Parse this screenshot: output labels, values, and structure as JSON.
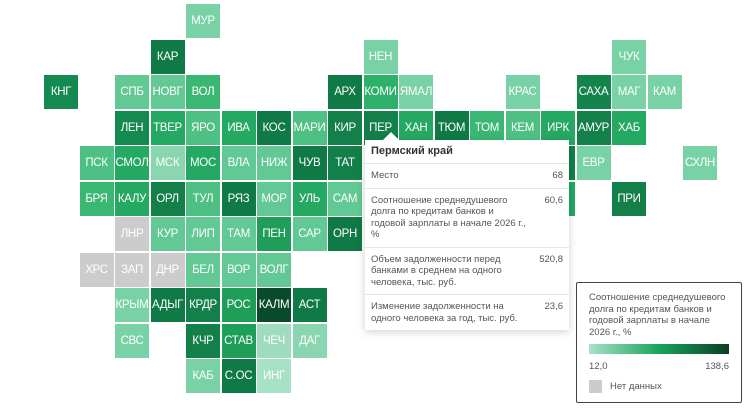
{
  "tiles": [
    {
      "label": "МУР",
      "row": 0,
      "col": 4,
      "color": "#79d1a6"
    },
    {
      "label": "КАР",
      "row": 1,
      "col": 3,
      "color": "#0f7a45"
    },
    {
      "label": "НЕН",
      "row": 1,
      "col": 9,
      "color": "#79d1a6"
    },
    {
      "label": "ЧУК",
      "row": 1,
      "col": 16,
      "color": "#79d1a6"
    },
    {
      "label": "КНГ",
      "row": 2,
      "col": 0,
      "color": "#148950"
    },
    {
      "label": "СПБ",
      "row": 2,
      "col": 2,
      "color": "#62c894"
    },
    {
      "label": "НОВГ",
      "row": 2,
      "col": 3,
      "color": "#62c894"
    },
    {
      "label": "ВОЛ",
      "row": 2,
      "col": 4,
      "color": "#3bb774"
    },
    {
      "label": "АРХ",
      "row": 2,
      "col": 8,
      "color": "#0f7a45"
    },
    {
      "label": "КОМИ",
      "row": 2,
      "col": 9,
      "color": "#2cb06a"
    },
    {
      "label": "ЯМАЛ",
      "row": 2,
      "col": 10,
      "color": "#79d1a6"
    },
    {
      "label": "КРАС",
      "row": 2,
      "col": 13,
      "color": "#79d1a6"
    },
    {
      "label": "САХА",
      "row": 2,
      "col": 15,
      "color": "#13854c"
    },
    {
      "label": "МАГ",
      "row": 2,
      "col": 16,
      "color": "#79d1a6"
    },
    {
      "label": "КАМ",
      "row": 2,
      "col": 17,
      "color": "#79d1a6"
    },
    {
      "label": "ЛЕН",
      "row": 3,
      "col": 2,
      "color": "#148950"
    },
    {
      "label": "ТВЕР",
      "row": 3,
      "col": 3,
      "color": "#24a862"
    },
    {
      "label": "ЯРО",
      "row": 3,
      "col": 4,
      "color": "#4fc083"
    },
    {
      "label": "ИВА",
      "row": 3,
      "col": 5,
      "color": "#24a862"
    },
    {
      "label": "КОС",
      "row": 3,
      "col": 6,
      "color": "#0f7a45"
    },
    {
      "label": "МАРИ",
      "row": 3,
      "col": 7,
      "color": "#4fc083"
    },
    {
      "label": "КИР",
      "row": 3,
      "col": 8,
      "color": "#13804a"
    },
    {
      "label": "ПЕР",
      "row": 3,
      "col": 9,
      "color": "#13804a"
    },
    {
      "label": "ХАН",
      "row": 3,
      "col": 10,
      "color": "#24a862"
    },
    {
      "label": "ТЮМ",
      "row": 3,
      "col": 11,
      "color": "#0f7a45"
    },
    {
      "label": "ТОМ",
      "row": 3,
      "col": 12,
      "color": "#3bb774"
    },
    {
      "label": "КЕМ",
      "row": 3,
      "col": 13,
      "color": "#4fc083"
    },
    {
      "label": "ИРК",
      "row": 3,
      "col": 14,
      "color": "#24a862"
    },
    {
      "label": "АМУР",
      "row": 3,
      "col": 15,
      "color": "#13804a"
    },
    {
      "label": "ХАБ",
      "row": 3,
      "col": 16,
      "color": "#24a862"
    },
    {
      "label": "ПСК",
      "row": 4,
      "col": 1,
      "color": "#4fc083"
    },
    {
      "label": "СМОЛ",
      "row": 4,
      "col": 2,
      "color": "#24a862"
    },
    {
      "label": "МСК",
      "row": 4,
      "col": 3,
      "color": "#8ad6b1"
    },
    {
      "label": "МОС",
      "row": 4,
      "col": 4,
      "color": "#24a862"
    },
    {
      "label": "ВЛА",
      "row": 4,
      "col": 5,
      "color": "#62c894"
    },
    {
      "label": "НИЖ",
      "row": 4,
      "col": 6,
      "color": "#62c894"
    },
    {
      "label": "ЧУВ",
      "row": 4,
      "col": 7,
      "color": "#0f7a45"
    },
    {
      "label": "ТАТ",
      "row": 4,
      "col": 8,
      "color": "#13804a"
    },
    {
      "label": "",
      "row": 4,
      "col": 14,
      "color": "#13804a"
    },
    {
      "label": "ЕВР",
      "row": 4,
      "col": 15,
      "color": "#79d1a6"
    },
    {
      "label": "СХЛН",
      "row": 4,
      "col": 18,
      "color": "#79d1a6"
    },
    {
      "label": "БРЯ",
      "row": 5,
      "col": 1,
      "color": "#3bb774"
    },
    {
      "label": "КАЛУ",
      "row": 5,
      "col": 2,
      "color": "#24a862"
    },
    {
      "label": "ОРЛ",
      "row": 5,
      "col": 3,
      "color": "#13804a"
    },
    {
      "label": "ТУЛ",
      "row": 5,
      "col": 4,
      "color": "#4fc083"
    },
    {
      "label": "РЯЗ",
      "row": 5,
      "col": 5,
      "color": "#0f7a45"
    },
    {
      "label": "МОР",
      "row": 5,
      "col": 6,
      "color": "#62c894"
    },
    {
      "label": "УЛЬ",
      "row": 5,
      "col": 7,
      "color": "#24a862"
    },
    {
      "label": "САМ",
      "row": 5,
      "col": 8,
      "color": "#62c894"
    },
    {
      "label": "",
      "row": 5,
      "col": 14,
      "color": "#24a862"
    },
    {
      "label": "ПРИ",
      "row": 5,
      "col": 16,
      "color": "#13804a"
    },
    {
      "label": "ЛНР",
      "row": 6,
      "col": 2,
      "color": "#cccccc"
    },
    {
      "label": "КУР",
      "row": 6,
      "col": 3,
      "color": "#62c894"
    },
    {
      "label": "ЛИП",
      "row": 6,
      "col": 4,
      "color": "#62c894"
    },
    {
      "label": "ТАМ",
      "row": 6,
      "col": 5,
      "color": "#62c894"
    },
    {
      "label": "ПЕН",
      "row": 6,
      "col": 6,
      "color": "#1f9e5a"
    },
    {
      "label": "САР",
      "row": 6,
      "col": 7,
      "color": "#62c894"
    },
    {
      "label": "ОРН",
      "row": 6,
      "col": 8,
      "color": "#0f7a45"
    },
    {
      "label": "ХРС",
      "row": 7,
      "col": 1,
      "color": "#cccccc"
    },
    {
      "label": "ЗАП",
      "row": 7,
      "col": 2,
      "color": "#cccccc"
    },
    {
      "label": "ДНР",
      "row": 7,
      "col": 3,
      "color": "#cccccc"
    },
    {
      "label": "БЕЛ",
      "row": 7,
      "col": 4,
      "color": "#62c894"
    },
    {
      "label": "ВОР",
      "row": 7,
      "col": 5,
      "color": "#62c894"
    },
    {
      "label": "ВОЛГ",
      "row": 7,
      "col": 6,
      "color": "#62c894"
    },
    {
      "label": "КРЫМ",
      "row": 8,
      "col": 2,
      "color": "#79d1a6"
    },
    {
      "label": "АДЫГ",
      "row": 8,
      "col": 3,
      "color": "#0f7a45"
    },
    {
      "label": "КРДР",
      "row": 8,
      "col": 4,
      "color": "#13804a"
    },
    {
      "label": "РОС",
      "row": 8,
      "col": 5,
      "color": "#1f9e5a"
    },
    {
      "label": "КАЛМ",
      "row": 8,
      "col": 6,
      "color": "#0a4a2c"
    },
    {
      "label": "АСТ",
      "row": 8,
      "col": 7,
      "color": "#0f7a45"
    },
    {
      "label": "СВС",
      "row": 9,
      "col": 2,
      "color": "#79d1a6"
    },
    {
      "label": "КЧР",
      "row": 9,
      "col": 4,
      "color": "#13804a"
    },
    {
      "label": "СТАВ",
      "row": 9,
      "col": 5,
      "color": "#1f9e5a"
    },
    {
      "label": "ЧЕЧ",
      "row": 9,
      "col": 6,
      "color": "#9fdcbf"
    },
    {
      "label": "ДАГ",
      "row": 9,
      "col": 7,
      "color": "#8ad6b1"
    },
    {
      "label": "КАБ",
      "row": 10,
      "col": 4,
      "color": "#79d1a6"
    },
    {
      "label": "С.ОС",
      "row": 10,
      "col": 5,
      "color": "#0f7a45"
    },
    {
      "label": "ИНГ",
      "row": 10,
      "col": 6,
      "color": "#a8e2c6"
    }
  ],
  "tooltip": {
    "title": "Пермский край",
    "rows": [
      {
        "label": "Место",
        "value": "68"
      },
      {
        "label": "Соотношение среднедушевого долга по кредитам банков и годовой зарплаты в начале 2026 г., %",
        "value": "60,6"
      },
      {
        "label": "Объем задолженности перед банками в среднем на одного человека, тыс. руб.",
        "value": "520,8"
      },
      {
        "label": "Изменение задолженности на одного человека за год, тыс. руб.",
        "value": "23,6"
      }
    ]
  },
  "legend": {
    "title": "Соотношение среднедушевого долга по кредитам банков и годовой зарплаты в начале 2026 г., %",
    "min": "12,0",
    "max": "138,6",
    "no_data": "Нет данных",
    "no_data_color": "#cccccc",
    "scale_colors": [
      "#a8e2c6",
      "#1aa35c",
      "#0a3f25"
    ]
  }
}
